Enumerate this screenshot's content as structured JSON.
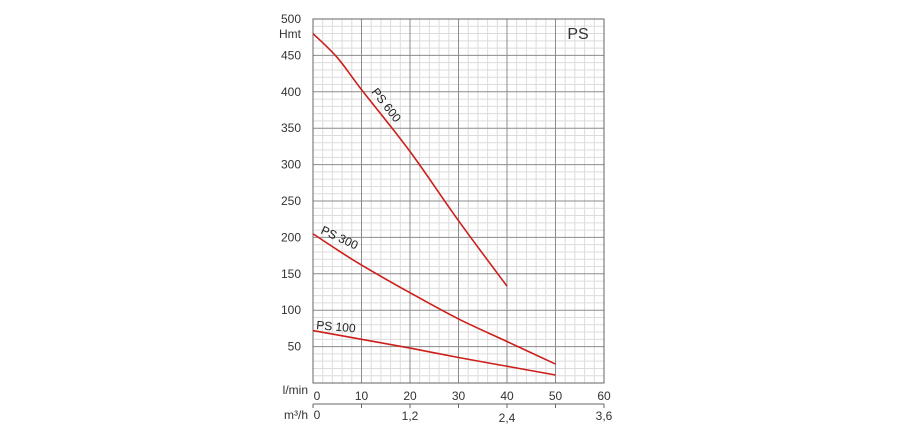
{
  "chart_data": {
    "type": "line",
    "model_label": "PS",
    "ylabel": "Hmt",
    "xlabel_primary": "l/min",
    "xlabel_secondary": "m³/h",
    "ylim": [
      0,
      500
    ],
    "xlim": [
      0,
      60
    ],
    "y_ticks": [
      "500",
      "450",
      "400",
      "350",
      "300",
      "250",
      "200",
      "150",
      "100",
      "50"
    ],
    "x_ticks": [
      "0",
      "10",
      "20",
      "30",
      "40",
      "50",
      "60"
    ],
    "x2_ticks": [
      {
        "label": "0",
        "x": 0
      },
      {
        "label": "1,2",
        "x": 20
      },
      {
        "label": "2,4",
        "x": 40
      },
      {
        "label": "3,6",
        "x": 60
      }
    ],
    "grid": true,
    "series": [
      {
        "name": "PS 600",
        "color": "#cc1f1a",
        "points": [
          [
            0,
            480
          ],
          [
            5,
            447
          ],
          [
            10,
            403
          ],
          [
            20,
            318
          ],
          [
            30,
            223
          ],
          [
            40,
            133
          ]
        ]
      },
      {
        "name": "PS 300",
        "color": "#cc1f1a",
        "points": [
          [
            0,
            205
          ],
          [
            5,
            183
          ],
          [
            10,
            162
          ],
          [
            20,
            124
          ],
          [
            30,
            88
          ],
          [
            40,
            57
          ],
          [
            50,
            26
          ]
        ]
      },
      {
        "name": "PS 100",
        "color": "#cc1f1a",
        "points": [
          [
            0,
            72
          ],
          [
            10,
            60
          ],
          [
            20,
            48
          ],
          [
            30,
            35
          ],
          [
            40,
            23
          ],
          [
            50,
            11
          ]
        ]
      }
    ]
  }
}
